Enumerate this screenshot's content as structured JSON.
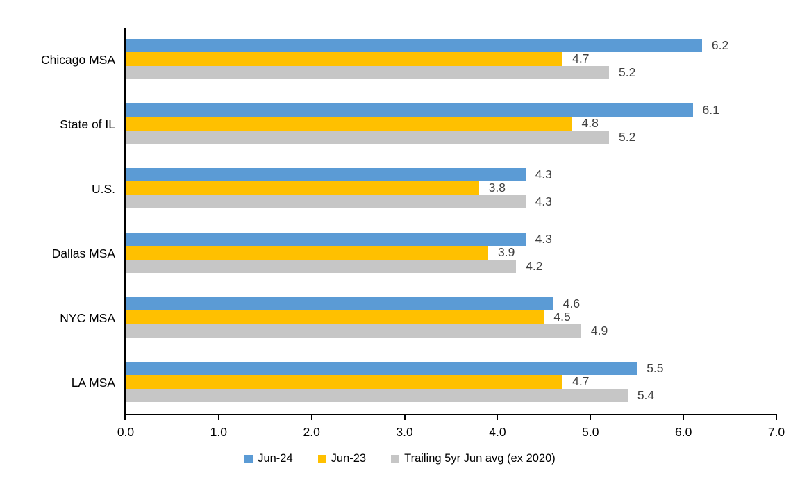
{
  "chart_data": {
    "type": "bar",
    "orientation": "horizontal",
    "title": "",
    "xlabel": "",
    "ylabel": "",
    "categories": [
      "Chicago MSA",
      "State of IL",
      "U.S.",
      "Dallas MSA",
      "NYC MSA",
      "LA MSA"
    ],
    "series": [
      {
        "name": "Jun-24",
        "color": "#5B9BD5",
        "values": [
          6.2,
          6.1,
          4.3,
          4.3,
          4.6,
          5.5
        ]
      },
      {
        "name": "Jun-23",
        "color": "#FFC000",
        "values": [
          4.7,
          4.8,
          3.8,
          3.9,
          4.5,
          4.7
        ]
      },
      {
        "name": "Trailing 5yr Jun avg (ex 2020)",
        "color": "#C6C6C6",
        "values": [
          5.2,
          5.2,
          4.3,
          4.2,
          4.9,
          5.4
        ]
      }
    ],
    "xlim": [
      0.0,
      7.0
    ],
    "x_ticks": [
      "0.0",
      "1.0",
      "2.0",
      "3.0",
      "4.0",
      "5.0",
      "6.0",
      "7.0"
    ],
    "grid": false,
    "data_labels": true,
    "data_label_format": "0.0",
    "legend_position": "bottom",
    "colors": {
      "axis": "#000000",
      "data_label": "#404040",
      "category_label": "#000000",
      "background": "#FFFFFF"
    }
  }
}
